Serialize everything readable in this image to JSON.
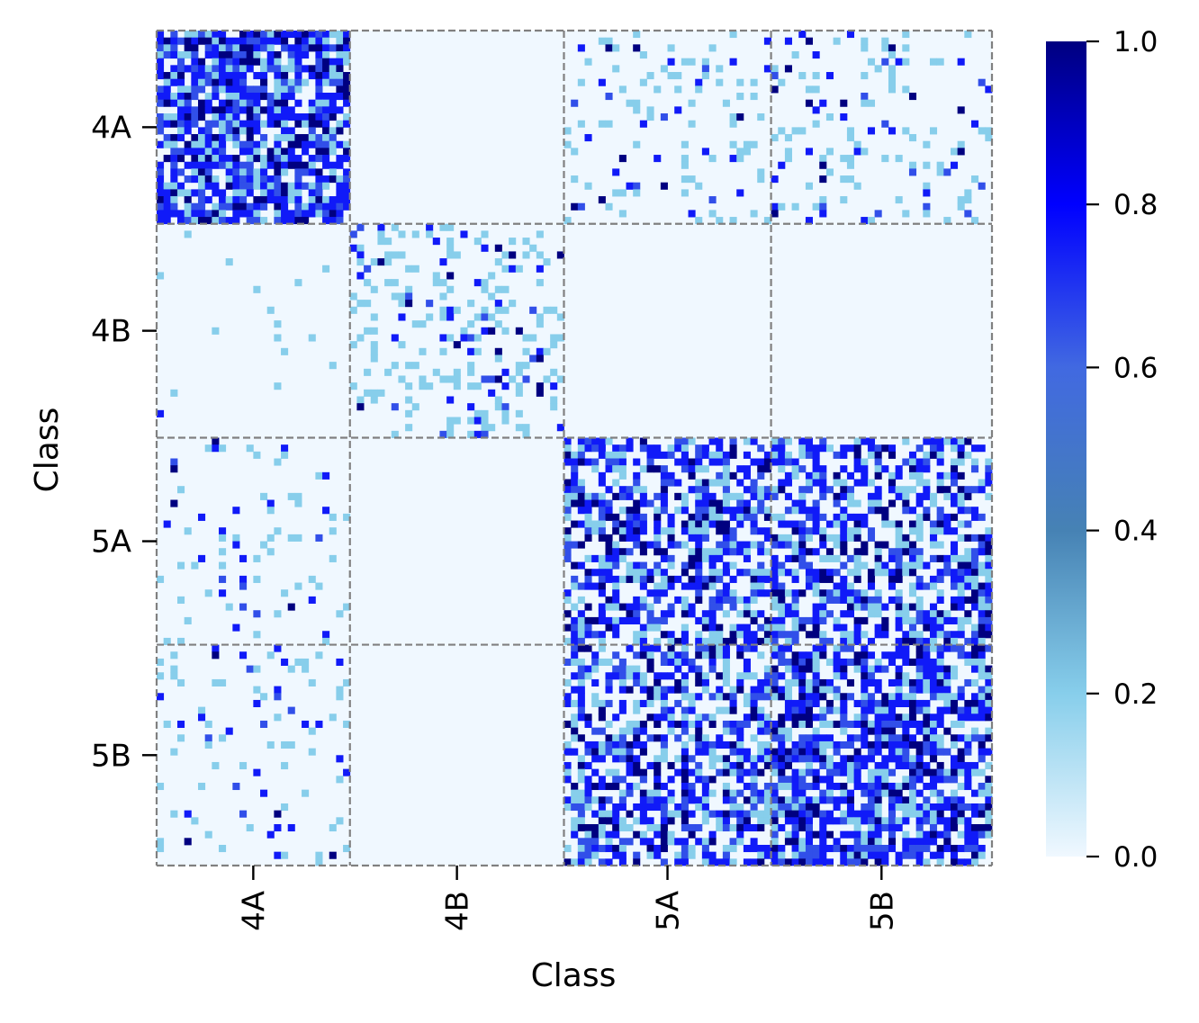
{
  "chart_data": {
    "type": "heatmap",
    "title": "",
    "xlabel": "Class",
    "ylabel": "Class",
    "categories": [
      "4A",
      "4B",
      "5A",
      "5B"
    ],
    "block_sizes": [
      28,
      31,
      30,
      32
    ],
    "value_range": [
      0,
      1
    ],
    "colorbar": {
      "ticks": [
        "0.0",
        "0.2",
        "0.4",
        "0.6",
        "0.8",
        "1.0"
      ],
      "colors": [
        "#f0f8ff",
        "#87ceeb",
        "#4682b4",
        "#4169e1",
        "#0000ff",
        "#000080"
      ]
    },
    "block_density": [
      [
        0.82,
        0.0,
        0.12,
        0.14
      ],
      [
        0.01,
        0.24,
        0.0,
        0.0
      ],
      [
        0.08,
        0.0,
        0.62,
        0.58
      ],
      [
        0.09,
        0.0,
        0.6,
        0.72
      ]
    ],
    "block_intensity": [
      [
        0.78,
        0.0,
        0.3,
        0.38
      ],
      [
        0.25,
        0.26,
        0.0,
        0.0
      ],
      [
        0.36,
        0.0,
        0.72,
        0.68
      ],
      [
        0.4,
        0.0,
        0.68,
        0.8
      ]
    ],
    "grid_lines": "dashed-gray",
    "legend": "right colorbar"
  }
}
